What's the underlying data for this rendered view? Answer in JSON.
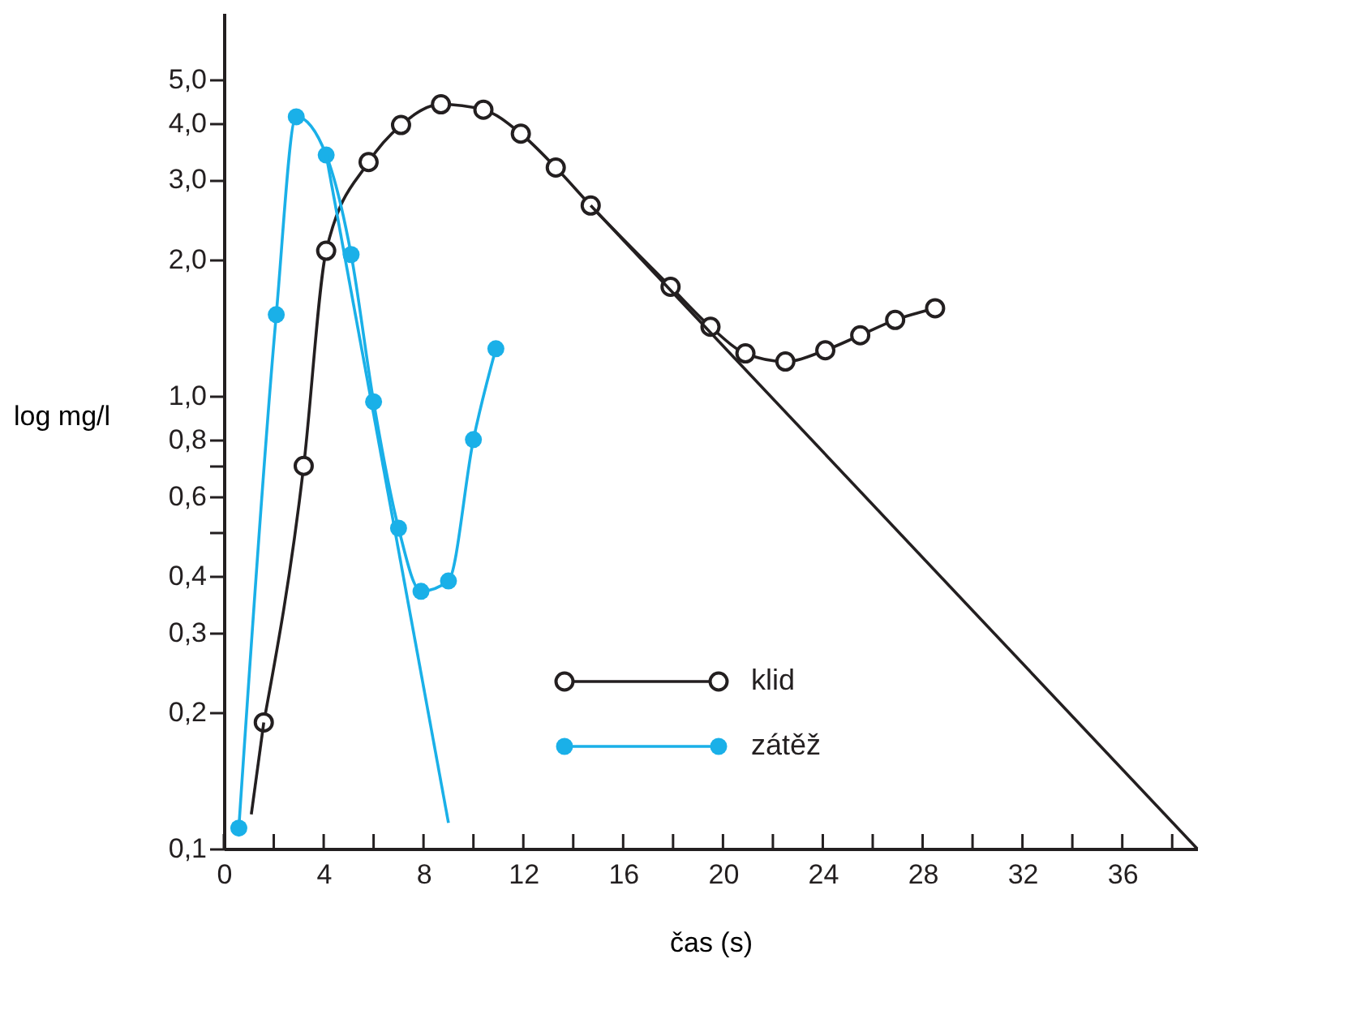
{
  "chart_data": {
    "type": "line",
    "xlabel": "čas  (s)",
    "ylabel": "log mg/l",
    "log": "y",
    "grid": false,
    "legend": "bottom",
    "line_style": "solid",
    "xlim": [
      0,
      39
    ],
    "ylim": [
      0.1,
      7
    ],
    "xticks": [
      0,
      {
        "value": 2,
        "label": null
      },
      4,
      {
        "value": 6,
        "label": null
      },
      8,
      {
        "value": 10,
        "label": null
      },
      12,
      {
        "value": 14,
        "label": null
      },
      16,
      {
        "value": 18,
        "label": null
      },
      20,
      {
        "value": 22,
        "label": null
      },
      24,
      {
        "value": 26,
        "label": null
      },
      28,
      {
        "value": 30,
        "label": null
      },
      32,
      {
        "value": 34,
        "label": null
      },
      36,
      {
        "value": 38,
        "label": null
      }
    ],
    "yticks": [
      {
        "value": 0.1,
        "label": "0,1"
      },
      {
        "value": 0.2,
        "label": "0,2"
      },
      {
        "value": 0.3,
        "label": "0,3"
      },
      {
        "value": 0.4,
        "label": "0,4"
      },
      {
        "value": 0.5,
        "label": null
      },
      {
        "value": 0.6,
        "label": "0,6"
      },
      {
        "value": 0.7,
        "label": null
      },
      {
        "value": 0.8,
        "label": "0,8"
      },
      {
        "value": 1.0,
        "label": "1,0"
      },
      {
        "value": 2.0,
        "label": "2,0"
      },
      {
        "value": 3.0,
        "label": "3,0"
      },
      {
        "value": 4.0,
        "label": "4,0"
      },
      {
        "value": 5.0,
        "label": "5,0"
      }
    ],
    "series": [
      {
        "name": "klid",
        "color": "#231f20",
        "marker": "circle",
        "x": [
          1.6,
          3.2,
          4.1,
          5.8,
          7.1,
          8.7,
          10.4,
          11.9,
          13.3,
          14.7,
          17.9,
          19.5,
          20.9,
          22.5,
          24.1,
          25.5,
          26.9,
          28.5
        ],
        "values": [
          0.19,
          0.7,
          2.09,
          3.28,
          3.96,
          4.4,
          4.28,
          3.79,
          3.19,
          2.63,
          1.74,
          1.42,
          1.24,
          1.19,
          1.26,
          1.36,
          1.47,
          1.56
        ]
      },
      {
        "name": "zátěž",
        "color": "#1ab0e8",
        "marker": "circle",
        "x": [
          0.6,
          2.1,
          2.9,
          4.1,
          5.1,
          6.0,
          7.0,
          7.9,
          9.0,
          10.0,
          10.9
        ],
        "values": [
          0.111,
          1.51,
          4.13,
          3.4,
          2.05,
          0.97,
          0.51,
          0.37,
          0.39,
          0.8,
          1.27
        ]
      },
      {
        "color": "#231f20",
        "marker": "none",
        "x": [
          1.1,
          1.6
        ],
        "values": [
          0.119,
          0.19
        ]
      },
      {
        "color": "#231f20",
        "marker": "none",
        "x": [
          14.7,
          39
        ],
        "values": [
          2.63,
          0.1
        ]
      },
      {
        "color": "#1ab0e8",
        "marker": "none",
        "x": [
          4.1,
          9.0
        ],
        "values": [
          3.4,
          0.114
        ]
      }
    ]
  }
}
